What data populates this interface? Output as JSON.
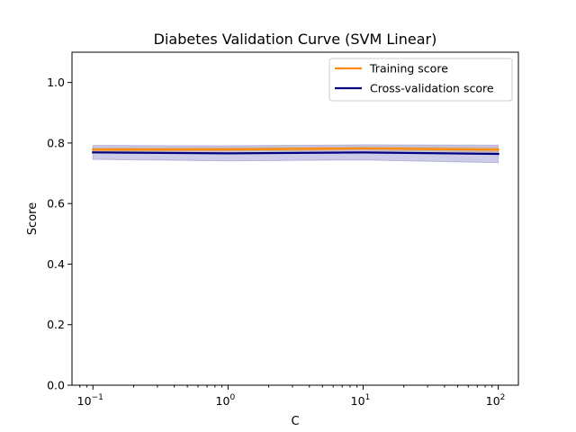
{
  "chart_data": {
    "type": "line",
    "title": "Diabetes Validation Curve (SVM Linear)",
    "xlabel": "C",
    "ylabel": "Score",
    "x_scale": "log",
    "xlim": [
      0.07,
      141
    ],
    "ylim": [
      0.0,
      1.1
    ],
    "x": [
      0.1,
      1,
      10,
      100
    ],
    "x_ticks": [
      {
        "value": 0.1,
        "base": "10",
        "exp": "−1"
      },
      {
        "value": 1,
        "base": "10",
        "exp": "0"
      },
      {
        "value": 10,
        "base": "10",
        "exp": "1"
      },
      {
        "value": 100,
        "base": "10",
        "exp": "2"
      }
    ],
    "y_ticks": [
      {
        "value": 0.0,
        "label": "0.0"
      },
      {
        "value": 0.2,
        "label": "0.2"
      },
      {
        "value": 0.4,
        "label": "0.4"
      },
      {
        "value": 0.6,
        "label": "0.6"
      },
      {
        "value": 0.8,
        "label": "0.8"
      },
      {
        "value": 1.0,
        "label": "1.0"
      }
    ],
    "series": [
      {
        "name": "Training score",
        "color": "#ff8c00",
        "values": [
          0.778,
          0.779,
          0.782,
          0.778
        ],
        "band_lower": [
          0.772,
          0.773,
          0.776,
          0.77
        ],
        "band_upper": [
          0.784,
          0.785,
          0.788,
          0.786
        ]
      },
      {
        "name": "Cross-validation score",
        "color": "#000080",
        "values": [
          0.769,
          0.766,
          0.769,
          0.764
        ],
        "band_lower": [
          0.746,
          0.741,
          0.744,
          0.735
        ],
        "band_upper": [
          0.792,
          0.791,
          0.794,
          0.793
        ]
      }
    ],
    "legend_position": "top-right",
    "grid": false
  }
}
